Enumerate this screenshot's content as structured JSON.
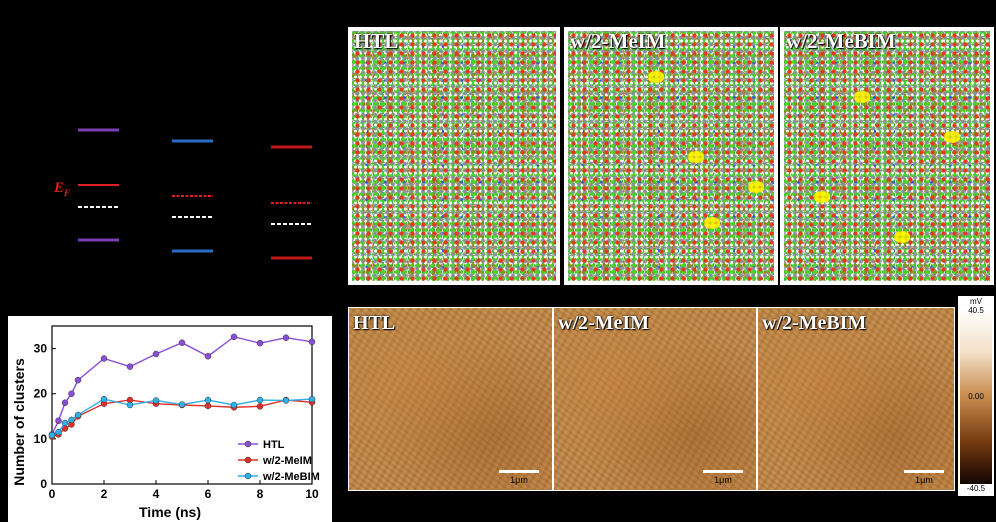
{
  "energy_diagram": {
    "fermi_label": "E",
    "fermi_sub": "F",
    "columns": [
      {
        "color": "#7b3fb5",
        "top_y": 130,
        "fermi_y": 185,
        "mid_y": 207,
        "bottom_y": 240
      },
      {
        "color": "#2a6bc6",
        "top_y": 141,
        "fermi_y": 196,
        "mid_y": 217,
        "bottom_y": 251
      },
      {
        "color": "#c01818",
        "top_y": 147,
        "fermi_y": 203,
        "mid_y": 224,
        "bottom_y": 258
      }
    ]
  },
  "md_panels": [
    {
      "label": "HTL"
    },
    {
      "label": "w/2-MeIM"
    },
    {
      "label": "w/2-MeBIM"
    }
  ],
  "afm_panels": [
    {
      "label": "HTL",
      "scalebar": "1μm"
    },
    {
      "label": "w/2-MeIM",
      "scalebar": "1μm"
    },
    {
      "label": "w/2-MeBIM",
      "scalebar": "1μm"
    }
  ],
  "colorbar": {
    "unit": "mV",
    "max": "40.5",
    "mid": "0.00",
    "min": "-40.5"
  },
  "chart_data": {
    "type": "line",
    "xlabel": "Time (ns)",
    "ylabel": "Number of clusters",
    "xlim": [
      0,
      10
    ],
    "ylim": [
      0,
      35
    ],
    "xticks": [
      0,
      2,
      4,
      6,
      8,
      10
    ],
    "yticks": [
      0,
      10,
      20,
      30
    ],
    "legend_position": "bottom-right",
    "series": [
      {
        "name": "HTL",
        "color": "#8a4fd6",
        "x": [
          0,
          0.25,
          0.5,
          0.75,
          1,
          2,
          3,
          4,
          5,
          6,
          7,
          8,
          9,
          10
        ],
        "values": [
          11,
          14,
          18,
          20,
          23,
          27.8,
          26,
          28.8,
          31.3,
          28.3,
          32.6,
          31.2,
          32.4,
          31.5
        ]
      },
      {
        "name": "w/2-MeIM",
        "color": "#e0302a",
        "x": [
          0,
          0.25,
          0.5,
          0.75,
          1,
          2,
          3,
          4,
          5,
          6,
          7,
          8,
          9,
          10
        ],
        "values": [
          10.5,
          11,
          12.3,
          13.2,
          15,
          17.8,
          18.6,
          17.8,
          17.5,
          17.3,
          17,
          17.2,
          18.6,
          18.1
        ]
      },
      {
        "name": "w/2-MeBIM",
        "color": "#2fb0e8",
        "x": [
          0,
          0.25,
          0.5,
          0.75,
          1,
          2,
          3,
          4,
          5,
          6,
          7,
          8,
          9,
          10
        ],
        "values": [
          10.8,
          11.5,
          13.5,
          14.2,
          15.3,
          18.8,
          17.5,
          18.5,
          17.6,
          18.6,
          17.5,
          18.6,
          18.5,
          18.8
        ]
      }
    ]
  }
}
